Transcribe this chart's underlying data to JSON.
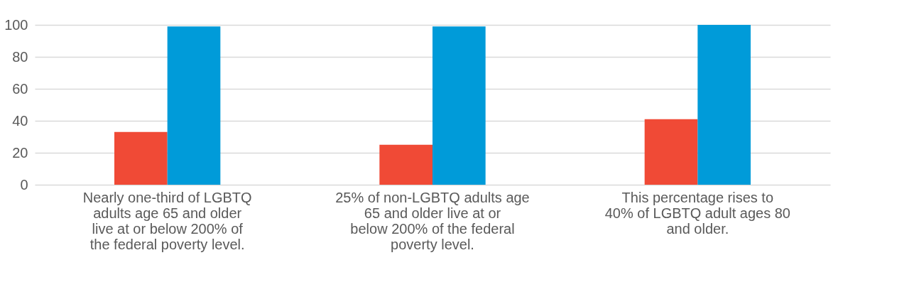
{
  "chart_data": {
    "type": "bar",
    "categories": [
      "Nearly one-third of LGBTQ adults age 65 and older live at or below 200% of the federal poverty level.",
      "25% of non-LGBTQ adults age 65 and older live at or below 200% of the federal poverty level.",
      "This percentage rises to 40% of LGBTQ adult ages 80 and older."
    ],
    "series": [
      {
        "color": "#f04a36",
        "values": [
          33,
          25,
          41
        ]
      },
      {
        "color": "#009bd9",
        "values": [
          99,
          99,
          100
        ]
      }
    ],
    "ylim": [
      0,
      100
    ],
    "yticks": [
      0,
      20,
      40,
      60,
      80,
      100
    ],
    "grid": "y",
    "legend": false
  }
}
